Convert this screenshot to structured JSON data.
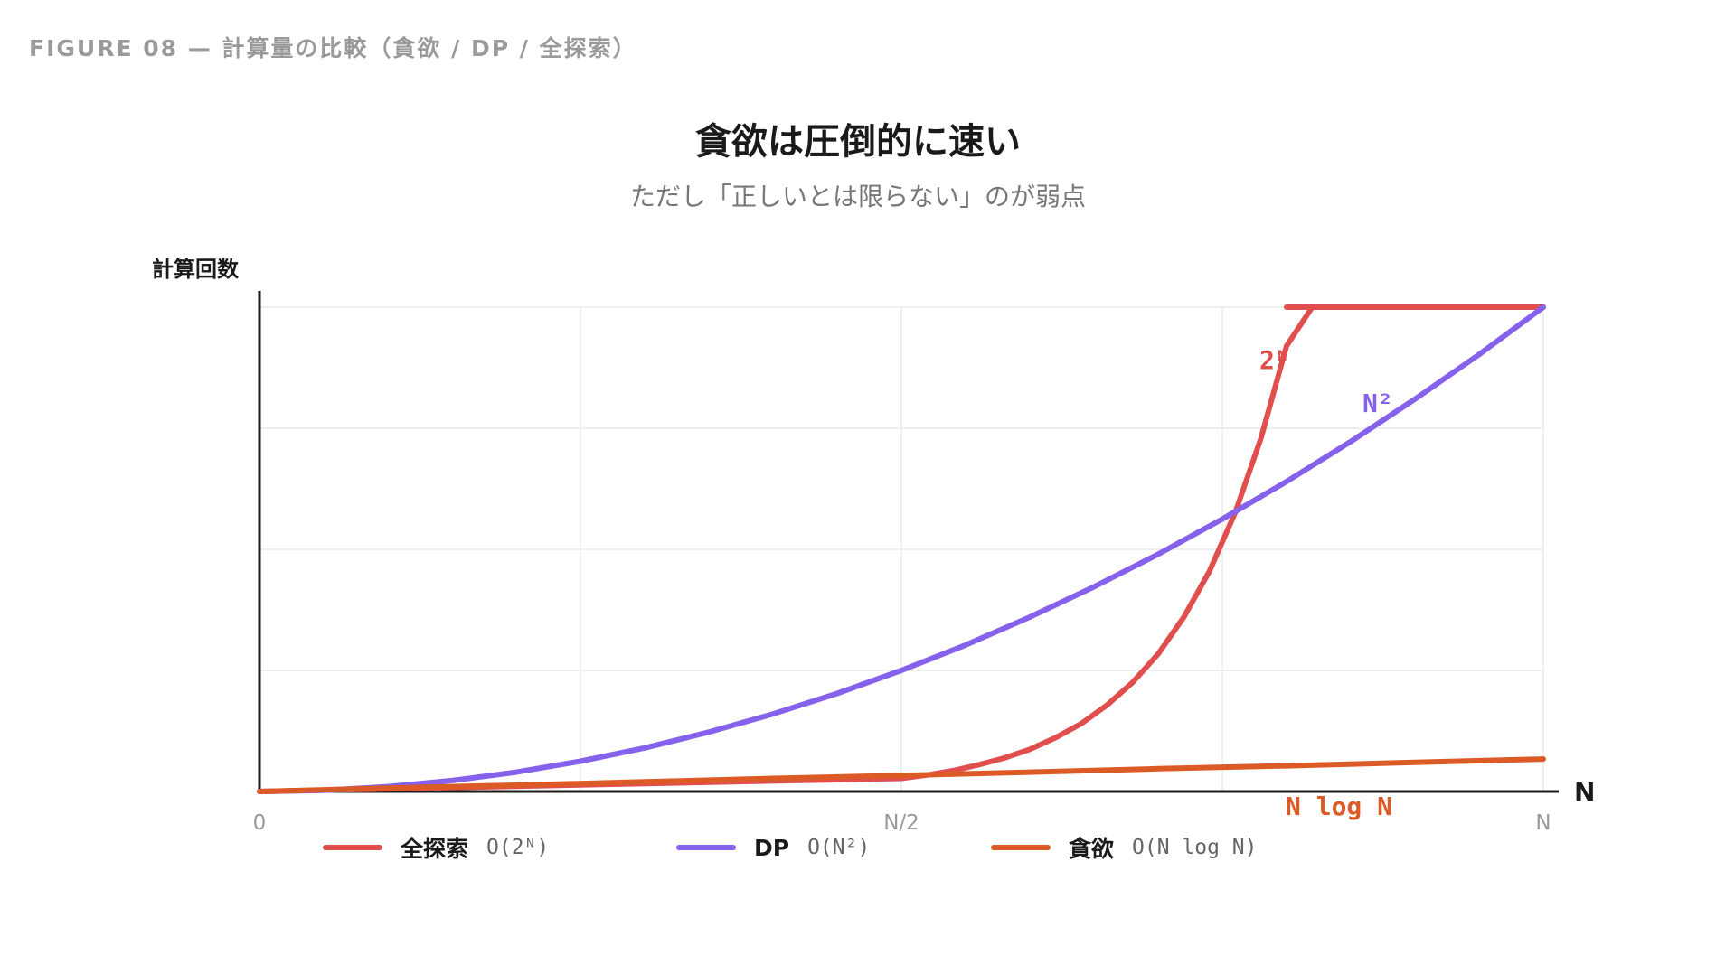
{
  "figure_label": "FIGURE 08 — 計算量の比較（貪欲 / DP / 全探索）",
  "title": "貪欲は圧倒的に速い",
  "subtitle": "ただし「正しいとは限らない」のが弱点",
  "colors": {
    "exhaustive": "#e04e4e",
    "dp": "#8561ec",
    "greedy": "#dc5a26",
    "axis": "#1a1a1a",
    "grid": "#efefef"
  },
  "chart_data": {
    "type": "line",
    "ylabel": "計算回数",
    "xlabel": "N",
    "x_ticks": [
      "0",
      "N/2",
      "N"
    ],
    "x_domain": [
      0,
      1
    ],
    "y_domain": [
      0,
      1
    ],
    "grid": true,
    "legend_position": "bottom",
    "series": [
      {
        "key": "exhaustive",
        "name": "全探索",
        "complexity": "O(2ᴺ)",
        "label": "2ᴺ",
        "x": [
          0,
          0.5,
          0.52,
          0.54,
          0.56,
          0.58,
          0.6,
          0.62,
          0.64,
          0.66,
          0.68,
          0.7,
          0.72,
          0.74,
          0.76,
          0.78,
          0.8,
          0.82,
          0.84,
          0.8,
          1.0
        ],
        "y": [
          0,
          0.027,
          0.034,
          0.043,
          0.055,
          0.069,
          0.087,
          0.111,
          0.14,
          0.178,
          0.225,
          0.284,
          0.36,
          0.455,
          0.576,
          0.729,
          0.92,
          1.0,
          1.0,
          1.0,
          1.0
        ]
      },
      {
        "key": "dp",
        "name": "DP",
        "complexity": "O(N²)",
        "label": "N²",
        "x": [
          0,
          0.05,
          0.1,
          0.15,
          0.2,
          0.25,
          0.3,
          0.35,
          0.4,
          0.45,
          0.5,
          0.55,
          0.6,
          0.65,
          0.7,
          0.75,
          0.8,
          0.85,
          0.9,
          0.95,
          1.0
        ],
        "y": [
          0,
          0.0025,
          0.01,
          0.0225,
          0.04,
          0.0625,
          0.09,
          0.1225,
          0.16,
          0.2025,
          0.25,
          0.3025,
          0.36,
          0.4225,
          0.49,
          0.5625,
          0.64,
          0.7225,
          0.81,
          0.9025,
          1.0
        ]
      },
      {
        "key": "greedy",
        "name": "貪欲",
        "complexity": "O(N log N)",
        "label": "N log N",
        "x": [
          0,
          0.1,
          0.2,
          0.3,
          0.4,
          0.5,
          0.6,
          0.7,
          0.8,
          0.9,
          1.0
        ],
        "y": [
          0,
          0.007,
          0.013,
          0.02,
          0.027,
          0.033,
          0.04,
          0.047,
          0.053,
          0.06,
          0.067
        ]
      }
    ]
  }
}
